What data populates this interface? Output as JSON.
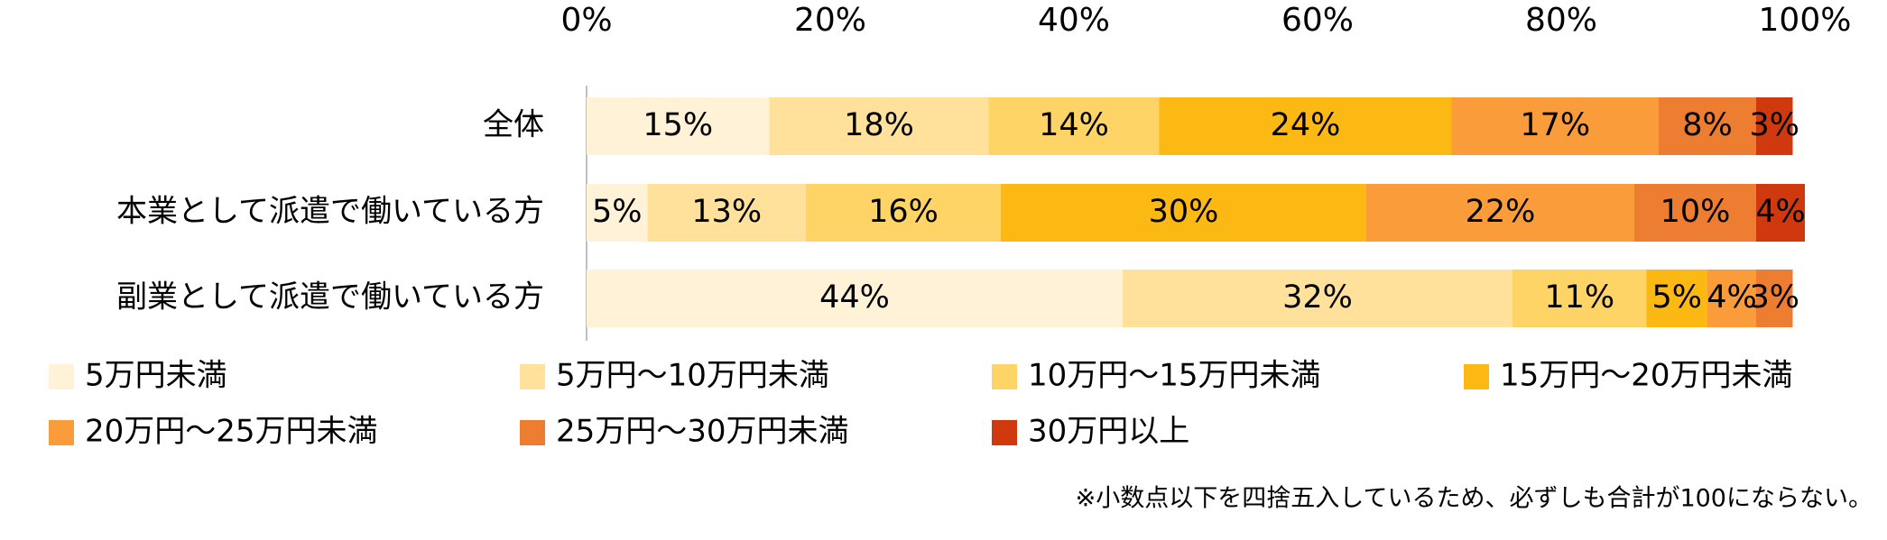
{
  "chart_data": {
    "type": "stacked_barh",
    "categories": [
      "全体",
      "本業として派遣で働いている方",
      "副業として派遣で働いている方"
    ],
    "series": [
      {
        "name": "5万円未満",
        "color": "#FFF2D6",
        "values": [
          15,
          5,
          44
        ],
        "value_labels": [
          "15%",
          "5%",
          "44%"
        ]
      },
      {
        "name": "5万円～10万円未満",
        "color": "#FFE19C",
        "values": [
          18,
          13,
          32
        ],
        "value_labels": [
          "18%",
          "13%",
          "32%"
        ]
      },
      {
        "name": "10万円～15万円未満",
        "color": "#FFD466",
        "values": [
          14,
          16,
          11
        ],
        "value_labels": [
          "14%",
          "16%",
          "11%"
        ]
      },
      {
        "name": "15万円～20万円未満",
        "color": "#FDB913",
        "values": [
          24,
          30,
          5
        ],
        "value_labels": [
          "24%",
          "30%",
          "5%"
        ]
      },
      {
        "name": "20万円～25万円未満",
        "color": "#FA9C3A",
        "values": [
          17,
          22,
          4
        ],
        "value_labels": [
          "17%",
          "22%",
          "4%"
        ]
      },
      {
        "name": "25万円～30万円未満",
        "color": "#ED7D31",
        "values": [
          8,
          10,
          3
        ],
        "value_labels": [
          "8%",
          "10%",
          "3%"
        ]
      },
      {
        "name": "30万円以上",
        "color": "#D0380E",
        "label_color": "#FFFFFF",
        "values": [
          3,
          4,
          null
        ],
        "value_labels": [
          "3%",
          "4%",
          null
        ]
      }
    ],
    "xlim": [
      0,
      100
    ],
    "xticks": [
      {
        "value": 0,
        "label": "0%"
      },
      {
        "value": 20,
        "label": "20%"
      },
      {
        "value": 40,
        "label": "40%"
      },
      {
        "value": 60,
        "label": "60%"
      },
      {
        "value": 80,
        "label": "80%"
      },
      {
        "value": 100,
        "label": "100%"
      }
    ],
    "note": "※小数点以下を四捨五入しているため、必ずしも合計が100にならない。"
  }
}
